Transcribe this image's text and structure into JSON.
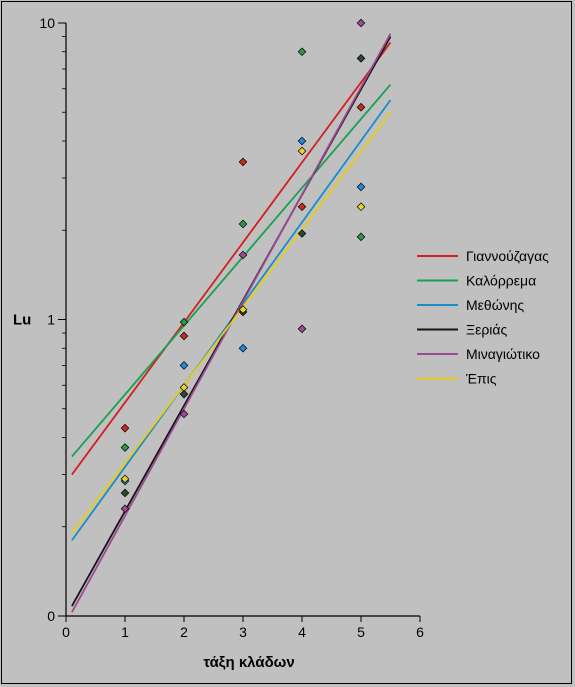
{
  "chart_data": {
    "type": "scatter",
    "xlabel": "τάξη κλάδων",
    "ylabel": "Lu",
    "xlim": [
      0,
      6
    ],
    "ylim": [
      0,
      10
    ],
    "y_scale": "log",
    "x_ticks": [
      0,
      1,
      2,
      3,
      4,
      5,
      6
    ],
    "y_ticks": [
      {
        "value": 10,
        "label": "10"
      },
      {
        "value": 1,
        "label": "1"
      },
      {
        "value": 0.1,
        "label": "0"
      }
    ],
    "grid": false,
    "legend_position": "right",
    "series": [
      {
        "name": "Γιαννούζαγας",
        "color": "#d42020",
        "marker_color": "#cc2a1e",
        "points": [
          [
            1,
            0.43
          ],
          [
            2,
            0.88
          ],
          [
            3,
            3.4
          ],
          [
            4,
            2.4
          ],
          [
            5,
            5.2
          ]
        ],
        "fit": [
          [
            0.1,
            0.3
          ],
          [
            5.5,
            8.6
          ]
        ]
      },
      {
        "name": "Καλόρρεμα",
        "color": "#18a050",
        "marker_color": "#2a9a48",
        "points": [
          [
            1,
            0.37
          ],
          [
            2,
            0.98
          ],
          [
            3,
            2.1
          ],
          [
            4,
            8.0
          ],
          [
            5,
            1.9
          ]
        ],
        "fit": [
          [
            0.1,
            0.345
          ],
          [
            5.5,
            6.2
          ]
        ]
      },
      {
        "name": "Μεθώνης",
        "color": "#1a8ccc",
        "marker_color": "#2288dd",
        "points": [
          [
            1,
            0.285
          ],
          [
            2,
            0.7
          ],
          [
            3,
            0.8
          ],
          [
            4,
            4.0
          ],
          [
            5,
            2.8
          ]
        ],
        "fit": [
          [
            0.1,
            0.18
          ],
          [
            5.5,
            5.5
          ]
        ]
      },
      {
        "name": "Ξεριάς",
        "color": "#141414",
        "marker_color": "#2d4a2d",
        "points": [
          [
            1,
            0.26
          ],
          [
            2,
            0.56
          ],
          [
            3,
            1.06
          ],
          [
            4,
            1.95
          ],
          [
            5,
            7.6
          ]
        ],
        "fit": [
          [
            0.1,
            0.108
          ],
          [
            5.5,
            9.0
          ]
        ]
      },
      {
        "name": "Μιναγιώτικο",
        "color": "#9a4a90",
        "marker_color": "#a04898",
        "points": [
          [
            1,
            0.23
          ],
          [
            2,
            0.48
          ],
          [
            3,
            1.65
          ],
          [
            4,
            0.93
          ],
          [
            5,
            10.0
          ]
        ],
        "fit": [
          [
            0.1,
            0.103
          ],
          [
            5.5,
            9.2
          ]
        ]
      },
      {
        "name": "Έπις",
        "color": "#e8cc18",
        "marker_color": "#f0d020",
        "points": [
          [
            1,
            0.29
          ],
          [
            2,
            0.59
          ],
          [
            3,
            1.08
          ],
          [
            4,
            3.7
          ],
          [
            5,
            2.4
          ]
        ],
        "fit": [
          [
            0.1,
            0.19
          ],
          [
            5.5,
            5.0
          ]
        ]
      }
    ]
  }
}
